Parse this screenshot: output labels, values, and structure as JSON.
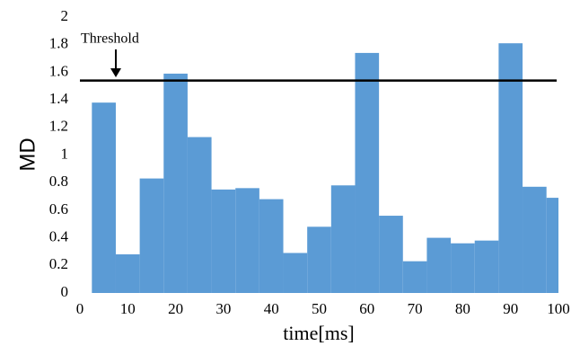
{
  "chart_data": {
    "type": "histogram",
    "xlabel": "time[ms]",
    "ylabel": "MD",
    "bins": [
      2.5,
      7.5,
      12.5,
      17.5,
      22.5,
      27.5,
      32.5,
      37.5,
      42.5,
      47.5,
      52.5,
      57.5,
      62.5,
      67.5,
      72.5,
      77.5,
      82.5,
      87.5,
      92.5,
      97.5,
      102.5
    ],
    "values": [
      1.38,
      0.28,
      0.83,
      1.59,
      1.13,
      0.75,
      0.76,
      0.68,
      0.29,
      0.48,
      0.78,
      1.74,
      0.56,
      0.23,
      0.4,
      0.36,
      0.38,
      1.81,
      0.77,
      0.69
    ],
    "color": "#5b9bd5",
    "xlim": [
      0,
      100
    ],
    "xticks": [
      0,
      10,
      20,
      30,
      40,
      50,
      60,
      70,
      80,
      90,
      100
    ],
    "ylim": [
      0,
      2
    ],
    "yticks": [
      0,
      0.2,
      0.4,
      0.6,
      0.8,
      1,
      1.2,
      1.4,
      1.6,
      1.8,
      2
    ],
    "threshold": {
      "label": "Threshold",
      "value": 1.54
    }
  }
}
